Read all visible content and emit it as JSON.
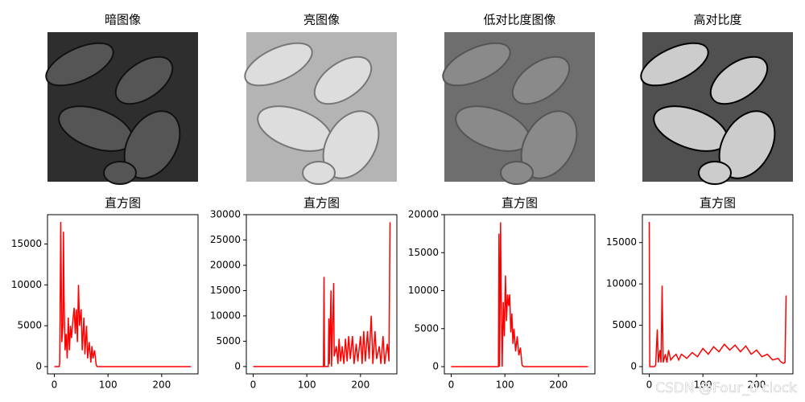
{
  "chart_data": [
    {
      "type": "image",
      "title": "暗图像",
      "color": "#2e2e2e"
    },
    {
      "type": "image",
      "title": "亮图像",
      "color": "#b4b4b4"
    },
    {
      "type": "image",
      "title": "低对比度图像",
      "color": "#6e6e6e"
    },
    {
      "type": "image",
      "title": "高对比度",
      "color": "#505050"
    },
    {
      "type": "line",
      "title": "直方图",
      "color": "#ff0000",
      "x": [
        0,
        9,
        10,
        12,
        14,
        16,
        17,
        18,
        20,
        22,
        24,
        26,
        28,
        30,
        32,
        35,
        37,
        39,
        41,
        43,
        45,
        47,
        50,
        52,
        55,
        57,
        60,
        62,
        65,
        68,
        70,
        72,
        75,
        78,
        80,
        255
      ],
      "values": [
        0,
        0,
        500,
        17700,
        3000,
        5000,
        16500,
        9000,
        2000,
        4000,
        1000,
        6000,
        2000,
        5000,
        3500,
        6000,
        7200,
        4000,
        7000,
        3000,
        10000,
        5000,
        7000,
        2000,
        6000,
        1500,
        5000,
        1000,
        3000,
        500,
        2500,
        1000,
        2000,
        200,
        0,
        0
      ],
      "xlim": [
        -12.75,
        267.75
      ],
      "ylim": [
        -885,
        18585
      ],
      "xticks": [
        0,
        100,
        200
      ],
      "yticks": [
        0,
        5000,
        10000,
        15000
      ]
    },
    {
      "type": "line",
      "title": "直方图",
      "color": "#ff0000",
      "x": [
        0,
        131,
        132,
        133,
        140,
        141,
        142,
        145,
        146,
        150,
        151,
        155,
        158,
        160,
        163,
        166,
        169,
        172,
        175,
        178,
        181,
        185,
        188,
        192,
        195,
        200,
        203,
        206,
        209,
        213,
        216,
        220,
        223,
        227,
        230,
        235,
        238,
        242,
        245,
        250,
        253,
        255
      ],
      "values": [
        0,
        0,
        17700,
        0,
        0,
        9500,
        500,
        15000,
        0,
        16500,
        2000,
        4000,
        500,
        5500,
        1000,
        4000,
        500,
        5500,
        1000,
        6000,
        1500,
        6000,
        500,
        4500,
        1000,
        6000,
        500,
        7000,
        1000,
        7000,
        1500,
        10000,
        500,
        7000,
        1500,
        4000,
        500,
        6000,
        500,
        4500,
        1000,
        28500
      ],
      "xlim": [
        -12.75,
        267.75
      ],
      "ylim": [
        -1450,
        30000
      ],
      "xticks": [
        0,
        100,
        200
      ],
      "yticks": [
        0,
        5000,
        10000,
        15000,
        20000,
        25000,
        30000
      ]
    },
    {
      "type": "line",
      "title": "直方图",
      "color": "#ff0000",
      "x": [
        0,
        88,
        89,
        90,
        92,
        93,
        95,
        97,
        99,
        101,
        103,
        105,
        107,
        109,
        111,
        113,
        115,
        117,
        120,
        123,
        126,
        129,
        132,
        135,
        255
      ],
      "values": [
        0,
        0,
        17500,
        0,
        19000,
        10000,
        0,
        8500,
        4000,
        12000,
        6000,
        9500,
        8000,
        9500,
        4500,
        7000,
        3000,
        5000,
        2000,
        4000,
        1500,
        2500,
        200,
        0,
        0
      ],
      "xlim": [
        -12.75,
        267.75
      ],
      "ylim": [
        -950,
        20000
      ],
      "xticks": [
        0,
        100,
        200
      ],
      "yticks": [
        0,
        5000,
        10000,
        15000,
        20000
      ]
    },
    {
      "type": "line",
      "title": "直方图",
      "color": "#ff0000",
      "x": [
        0,
        1,
        10,
        12,
        15,
        17,
        20,
        22,
        24,
        26,
        30,
        33,
        36,
        40,
        45,
        50,
        55,
        60,
        70,
        80,
        90,
        100,
        110,
        120,
        130,
        140,
        150,
        160,
        170,
        180,
        190,
        200,
        210,
        220,
        230,
        240,
        245,
        250,
        253,
        255
      ],
      "values": [
        17500,
        0,
        0,
        200,
        4500,
        500,
        2000,
        500,
        9800,
        500,
        1500,
        500,
        2000,
        800,
        1200,
        1500,
        800,
        1500,
        1000,
        1700,
        1200,
        2200,
        1500,
        2400,
        1800,
        2700,
        2000,
        2600,
        1800,
        2500,
        1500,
        2000,
        1200,
        1500,
        800,
        1000,
        600,
        400,
        500,
        8600
      ],
      "xlim": [
        -12.75,
        267.75
      ],
      "ylim": [
        -875,
        18375
      ],
      "xticks": [
        0,
        100,
        200
      ],
      "yticks": [
        0,
        5000,
        10000,
        15000
      ]
    }
  ],
  "watermark": "CSDN @Four_0'clock"
}
